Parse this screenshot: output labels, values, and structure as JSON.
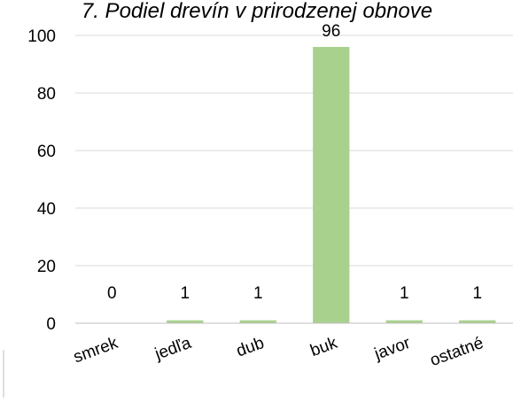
{
  "chart_data": {
    "type": "bar",
    "title": "7. Podiel drevín v prirodzenej obnove",
    "categories": [
      "smrek",
      "jedľa",
      "dub",
      "buk",
      "javor",
      "ostatné"
    ],
    "values": [
      0,
      1,
      1,
      96,
      1,
      1
    ],
    "data_labels": [
      "0",
      "1",
      "1",
      "96",
      "1",
      "1"
    ],
    "y_ticks": [
      "0",
      "20",
      "40",
      "60",
      "80",
      "100"
    ],
    "y_tick_values": [
      0,
      20,
      40,
      60,
      80,
      100
    ],
    "ylim": [
      0,
      100
    ],
    "xlabel": "",
    "ylabel": "",
    "grid": true,
    "legend": "none",
    "colors": {
      "bar": "#a9d18e",
      "gridline": "#d9d9d9",
      "axis": "#bfbfbf",
      "text": "#000000"
    }
  }
}
